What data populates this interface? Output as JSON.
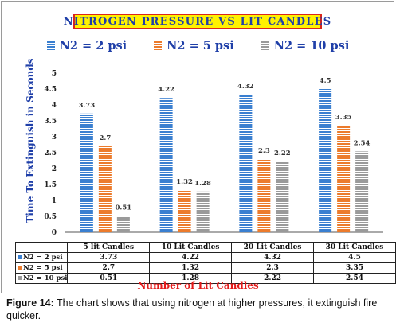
{
  "figure": {
    "label": "Figure 14:",
    "caption": " The chart shows that using nitrogen at higher pressures, it extinguish fire quicker."
  },
  "chart_data": {
    "type": "bar",
    "title": "NITROGEN PRESSURE VS LIT CANDLES",
    "xlabel": "Number of Lit Candles",
    "ylabel": "Time To Extinguish in Seconds",
    "categories": [
      "5 lit Candles",
      "10 Lit Candles",
      "20 Lit Candles",
      "30 Lit Candles"
    ],
    "series": [
      {
        "name": "N2 = 2 psi",
        "values": [
          3.73,
          4.22,
          4.32,
          4.5
        ],
        "color": "#3a7fd0"
      },
      {
        "name": "N2 = 5 psi",
        "values": [
          2.7,
          1.32,
          2.3,
          3.35
        ],
        "color": "#ec7b2c"
      },
      {
        "name": "N2 = 10 psi",
        "values": [
          0.51,
          1.28,
          2.22,
          2.54
        ],
        "color": "#9a9a9a"
      }
    ],
    "ylim": [
      0,
      5
    ],
    "yticks": [
      "0",
      "0.5",
      "1",
      "1.5",
      "2",
      "2.5",
      "3",
      "3.5",
      "4",
      "4.5",
      "5"
    ],
    "data_labels": [
      [
        "3.73",
        "4.22",
        "4.32",
        "4.5"
      ],
      [
        "2.7",
        "1.32",
        "2.3",
        "3.35"
      ],
      [
        "0.51",
        "1.28",
        "2.22",
        "2.54"
      ]
    ],
    "table": {
      "row_labels": [
        "N2 = 2 psi",
        "N2 = 5 psi",
        "N2 = 10 psi"
      ],
      "rows": [
        [
          "3.73",
          "4.22",
          "4.32",
          "4.5"
        ],
        [
          "2.7",
          "1.32",
          "2.3",
          "3.35"
        ],
        [
          "0.51",
          "1.28",
          "2.22",
          "2.54"
        ]
      ]
    },
    "legend_position": "top",
    "grid": false
  }
}
